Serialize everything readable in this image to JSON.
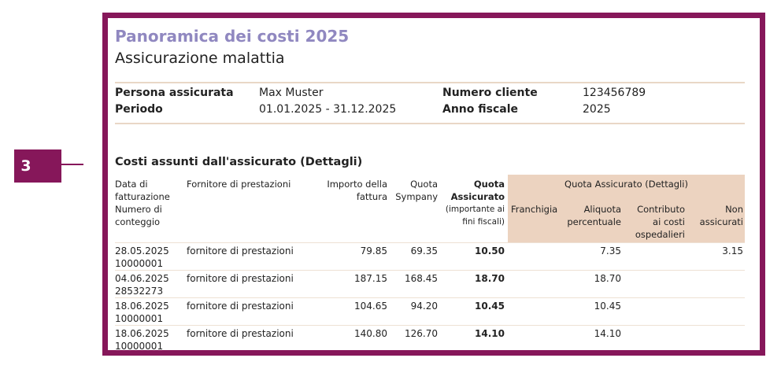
{
  "callout": {
    "number": "3"
  },
  "header": {
    "title": "Panoramica dei costi 2025",
    "subtitle": "Assicurazione malattia"
  },
  "info": {
    "rows": [
      [
        {
          "label": "Persona assicurata",
          "value": "Max Muster"
        },
        {
          "label": "Numero cliente",
          "value": "123456789"
        }
      ],
      [
        {
          "label": "Periodo",
          "value": "01.01.2025 - 31.12.2025"
        },
        {
          "label": "Anno fiscale",
          "value": "2025"
        }
      ]
    ]
  },
  "section": {
    "title": "Costi assunti dall'assicurato (Dettagli)"
  },
  "table": {
    "group_header": "Quota Assicurato (Dettagli)",
    "columns": [
      {
        "lines": [
          "Data di",
          "fatturazione",
          "Numero di",
          "conteggio"
        ]
      },
      {
        "lines": [
          "Fornitore di prestazioni"
        ]
      },
      {
        "lines": [
          "Importo della",
          "fattura"
        ]
      },
      {
        "lines": [
          "Quota",
          "Sympany"
        ]
      },
      {
        "lines": [
          "Quota",
          "Assicurato"
        ],
        "note": [
          "(importante ai",
          "fini fiscali)"
        ]
      },
      {
        "lines": [
          "Franchigia"
        ]
      },
      {
        "lines": [
          "Aliquota",
          "percentuale"
        ]
      },
      {
        "lines": [
          "Contributo",
          "ai costi",
          "ospedalieri"
        ]
      },
      {
        "lines": [
          "Non",
          "assicurati"
        ]
      }
    ],
    "rows": [
      {
        "date": "28.05.2025",
        "number": "10000001",
        "cells": [
          "fornitore di prestazioni",
          "79.85",
          "69.35",
          "10.50",
          null,
          "7.35",
          null,
          "3.15"
        ]
      },
      {
        "date": "04.06.2025",
        "number": "28532273",
        "cells": [
          "fornitore di prestazioni",
          "187.15",
          "168.45",
          "18.70",
          null,
          "18.70",
          null,
          null
        ]
      },
      {
        "date": "18.06.2025",
        "number": "10000001",
        "cells": [
          "fornitore di prestazioni",
          "104.65",
          "94.20",
          "10.45",
          null,
          "10.45",
          null,
          null
        ]
      },
      {
        "date": "18.06.2025",
        "number": "10000001",
        "cells": [
          "fornitore di prestazioni",
          "140.80",
          "126.70",
          "14.10",
          null,
          "14.10",
          null,
          null
        ]
      }
    ]
  }
}
